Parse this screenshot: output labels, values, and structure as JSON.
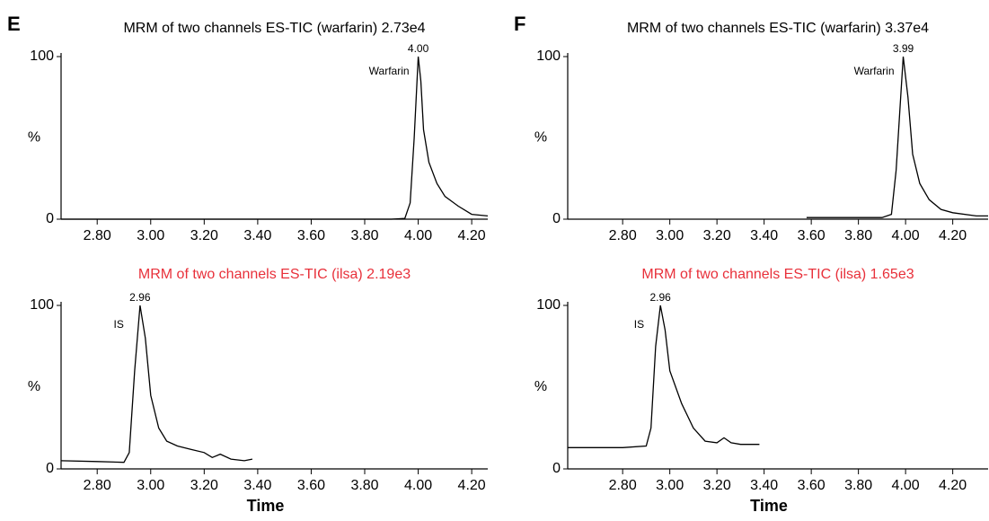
{
  "chart_data": [
    {
      "type": "line",
      "panel": "E",
      "title": "MRM of two channels ES-TIC (warfarin) 2.73e4",
      "title_color": "#000000",
      "ylabel": "%",
      "peak_label": "4.00",
      "compound": "Warfarin",
      "color": "#000000",
      "x": [
        2.665,
        3.9,
        3.95,
        3.97,
        3.985,
        4.0,
        4.01,
        4.02,
        4.04,
        4.07,
        4.1,
        4.15,
        4.2,
        4.26
      ],
      "values": [
        0,
        0,
        0.5,
        10,
        50,
        100,
        85,
        55,
        35,
        22,
        14,
        8,
        3,
        2
      ],
      "xlim": [
        2.665,
        4.26
      ],
      "ylim": [
        0,
        100
      ],
      "xticks": [
        {
          "value": 2.8,
          "label": "2.80"
        },
        {
          "value": 3.0,
          "label": "3.00"
        },
        {
          "value": 3.2,
          "label": "3.20"
        },
        {
          "value": 3.4,
          "label": "3.40"
        },
        {
          "value": 3.6,
          "label": "3.60"
        },
        {
          "value": 3.8,
          "label": "3.80"
        },
        {
          "value": 4.0,
          "label": "4.00"
        },
        {
          "value": 4.2,
          "label": "4.20"
        }
      ],
      "yticks": [
        0,
        100
      ]
    },
    {
      "type": "line",
      "title": "MRM of two channels ES-TIC (ilsa) 2.19e3",
      "title_color": "#e8303a",
      "ylabel": "%",
      "xlabel": "Time",
      "peak_label": "2.96",
      "compound": "IS",
      "color": "#000000",
      "x": [
        2.665,
        2.8,
        2.9,
        2.92,
        2.94,
        2.96,
        2.98,
        3.0,
        3.03,
        3.06,
        3.1,
        3.15,
        3.2,
        3.23,
        3.26,
        3.3,
        3.35,
        3.38
      ],
      "values": [
        5,
        4.5,
        4,
        10,
        60,
        100,
        80,
        45,
        25,
        17,
        14,
        12,
        10,
        7,
        9,
        6,
        5,
        6
      ],
      "xlim": [
        2.665,
        4.26
      ],
      "ylim": [
        0,
        100
      ],
      "xticks": [
        {
          "value": 2.8,
          "label": "2.80"
        },
        {
          "value": 3.0,
          "label": "3.00"
        },
        {
          "value": 3.2,
          "label": "3.20"
        },
        {
          "value": 3.4,
          "label": "3.40"
        },
        {
          "value": 3.6,
          "label": "3.60"
        },
        {
          "value": 3.8,
          "label": "3.80"
        },
        {
          "value": 4.0,
          "label": "4.00"
        },
        {
          "value": 4.2,
          "label": "4.20"
        }
      ],
      "yticks": [
        0,
        100
      ]
    },
    {
      "type": "line",
      "panel": "F",
      "title": "MRM of two channels ES-TIC (warfarin) 3.37e4",
      "title_color": "#000000",
      "ylabel": "%",
      "peak_label": "3.99",
      "compound": "Warfarin",
      "color": "#000000",
      "x": [
        3.58,
        3.9,
        3.94,
        3.96,
        3.99,
        4.01,
        4.03,
        4.06,
        4.1,
        4.15,
        4.2,
        4.3,
        4.35
      ],
      "values": [
        1,
        1,
        3,
        30,
        100,
        75,
        40,
        22,
        12,
        6,
        4,
        2,
        2
      ],
      "xlim": [
        2.567,
        4.35
      ],
      "ylim": [
        0,
        100
      ],
      "xticks": [
        {
          "value": 2.8,
          "label": "2.80"
        },
        {
          "value": 3.0,
          "label": "3.00"
        },
        {
          "value": 3.2,
          "label": "3.20"
        },
        {
          "value": 3.4,
          "label": "3.40"
        },
        {
          "value": 3.6,
          "label": "3.60"
        },
        {
          "value": 3.8,
          "label": "3.80"
        },
        {
          "value": 4.0,
          "label": "4.00"
        },
        {
          "value": 4.2,
          "label": "4.20"
        }
      ],
      "yticks": [
        0,
        100
      ]
    },
    {
      "type": "line",
      "title": "MRM of two channels ES-TIC (ilsa) 1.65e3",
      "title_color": "#e8303a",
      "ylabel": "%",
      "xlabel": "Time",
      "peak_label": "2.96",
      "compound": "IS",
      "color": "#000000",
      "x": [
        2.567,
        2.8,
        2.9,
        2.92,
        2.94,
        2.96,
        2.98,
        3.0,
        3.05,
        3.1,
        3.15,
        3.2,
        3.23,
        3.26,
        3.3,
        3.38
      ],
      "values": [
        13,
        13,
        14,
        25,
        75,
        100,
        85,
        60,
        40,
        25,
        17,
        16,
        19,
        16,
        15,
        15
      ],
      "xlim": [
        2.567,
        4.35
      ],
      "ylim": [
        0,
        100
      ],
      "xticks": [
        {
          "value": 2.8,
          "label": "2.80"
        },
        {
          "value": 3.0,
          "label": "3.00"
        },
        {
          "value": 3.2,
          "label": "3.20"
        },
        {
          "value": 3.4,
          "label": "3.40"
        },
        {
          "value": 3.6,
          "label": "3.60"
        },
        {
          "value": 3.8,
          "label": "3.80"
        },
        {
          "value": 4.0,
          "label": "4.00"
        },
        {
          "value": 4.2,
          "label": "4.20"
        }
      ],
      "yticks": [
        0,
        100
      ]
    }
  ]
}
